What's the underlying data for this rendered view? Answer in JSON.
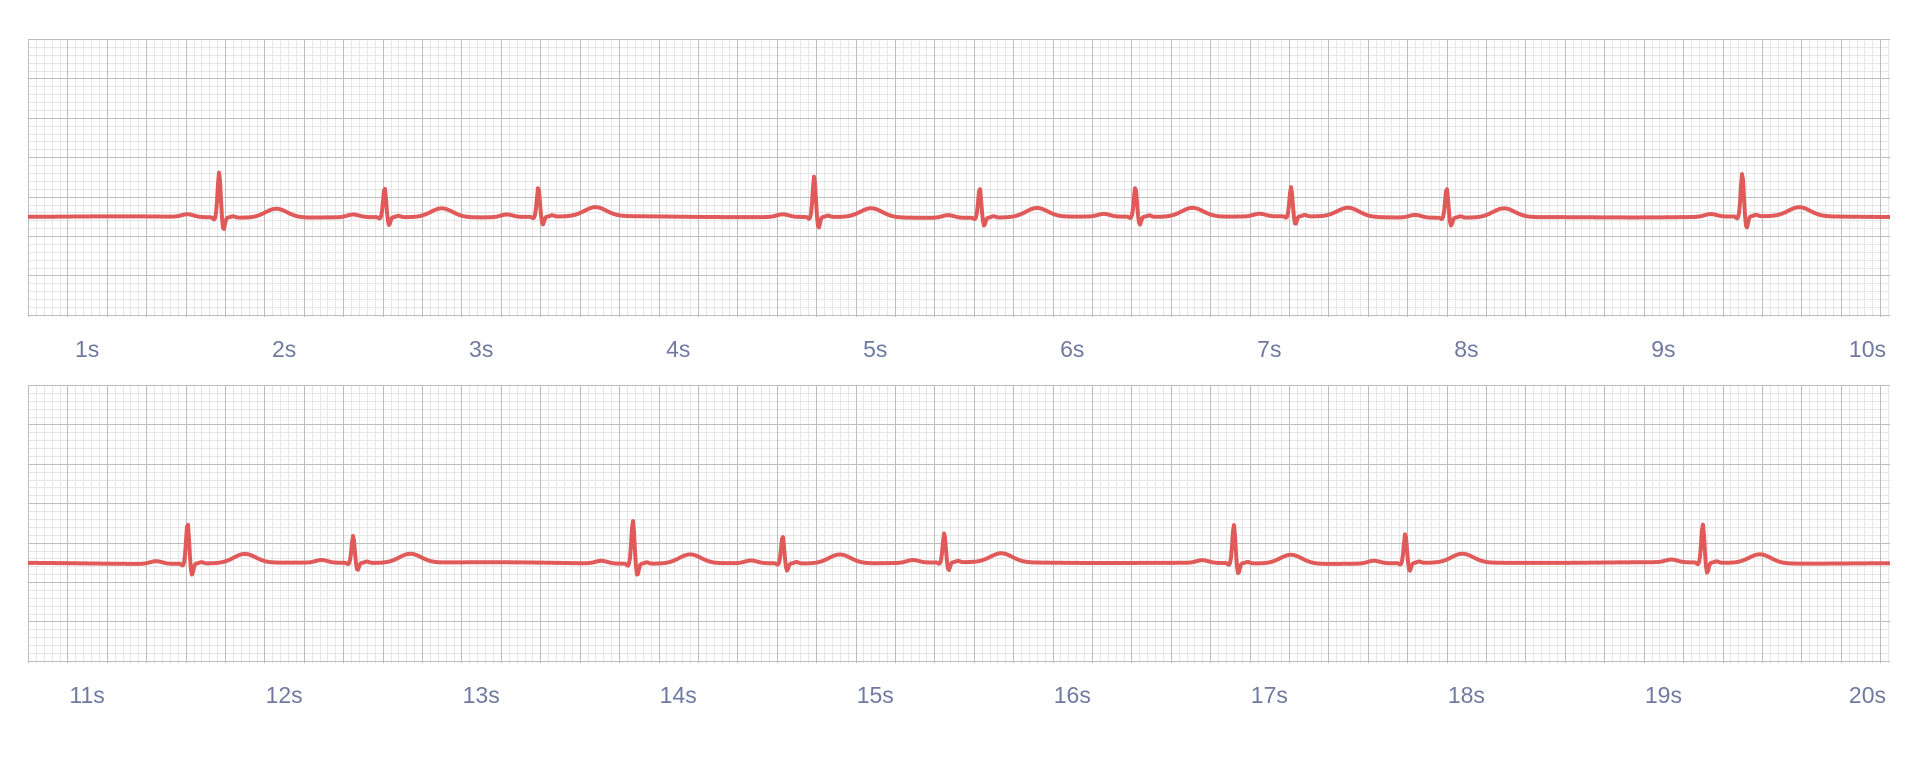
{
  "colors": {
    "trace": "#e05a5a",
    "grid_minor": "#e6e6e6",
    "grid_major": "#bdbdbd",
    "labels": "#7079a0"
  },
  "chart_data": [
    {
      "type": "line",
      "title": "",
      "xlabel": "",
      "ylabel": "",
      "x_range_s": [
        0.7,
        10.15
      ],
      "xtick_labels": [
        "1s",
        "2s",
        "3s",
        "4s",
        "5s",
        "6s",
        "7s",
        "8s",
        "9s",
        "10s"
      ],
      "xtick_values_s": [
        1,
        2,
        3,
        4,
        5,
        6,
        7,
        8,
        9,
        10
      ],
      "grid": true,
      "series": [
        {
          "r_peaks_s": [
            1.67,
            2.51,
            3.29,
            4.69,
            5.53,
            6.32,
            7.11,
            7.9,
            9.4
          ],
          "r_amplitude": [
            1.0,
            0.65,
            0.65,
            0.9,
            0.65,
            0.65,
            0.65,
            0.65,
            0.95
          ]
        }
      ]
    },
    {
      "type": "line",
      "title": "",
      "xlabel": "",
      "ylabel": "",
      "x_range_s": [
        10.7,
        20.15
      ],
      "xtick_labels": [
        "11s",
        "12s",
        "13s",
        "14s",
        "15s",
        "16s",
        "17s",
        "18s",
        "19s",
        "20s"
      ],
      "xtick_values_s": [
        11,
        12,
        13,
        14,
        15,
        16,
        17,
        18,
        19,
        20
      ],
      "grid": true,
      "series": [
        {
          "r_peaks_s": [
            11.51,
            12.35,
            13.77,
            14.53,
            15.35,
            16.82,
            17.69,
            19.2
          ],
          "r_amplitude": [
            0.9,
            0.6,
            0.95,
            0.6,
            0.65,
            0.85,
            0.65,
            0.85
          ]
        }
      ]
    }
  ]
}
